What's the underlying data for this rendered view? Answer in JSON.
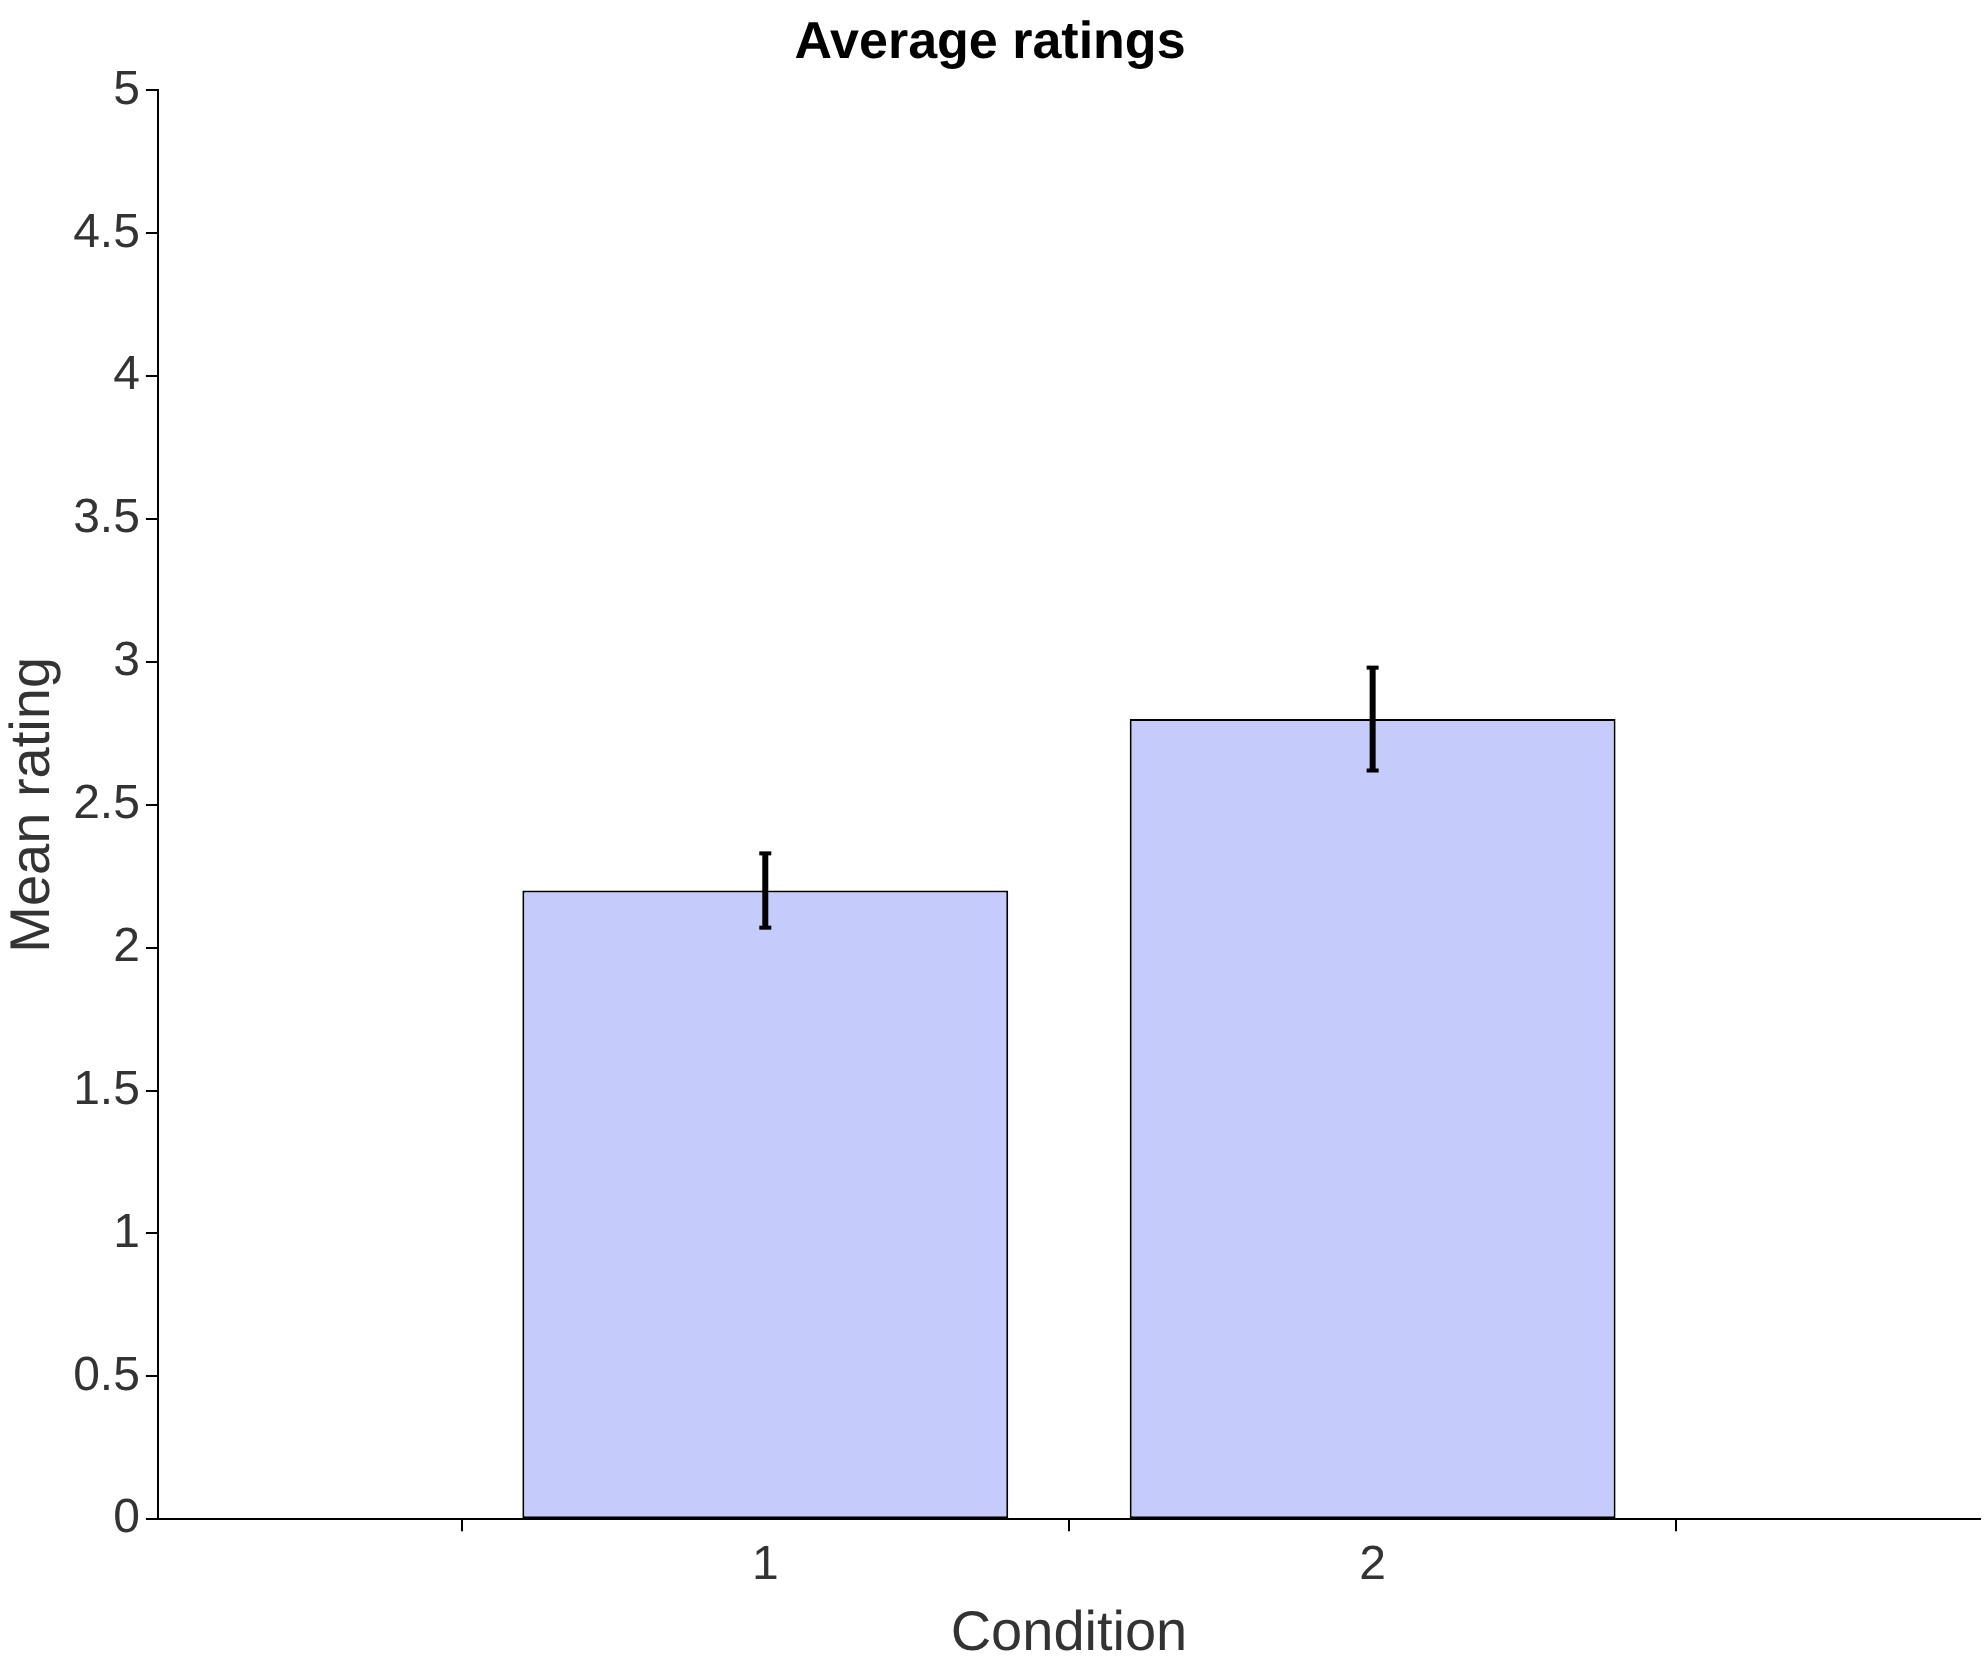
{
  "chart_data": {
    "type": "bar",
    "title": "Average ratings",
    "xlabel": "Condition",
    "ylabel": "Mean rating",
    "x": [
      1,
      2
    ],
    "values": [
      2.2,
      2.8
    ],
    "errors": [
      0.13,
      0.18
    ],
    "color": "#c5cbfa",
    "xlim": [
      0,
      3
    ],
    "xticks": [
      1,
      2
    ],
    "ylim": [
      0,
      5
    ],
    "yticks": [
      0,
      0.5,
      1,
      1.5,
      2,
      2.5,
      3,
      3.5,
      4,
      4.5,
      5
    ],
    "grid": false,
    "legend": false
  }
}
